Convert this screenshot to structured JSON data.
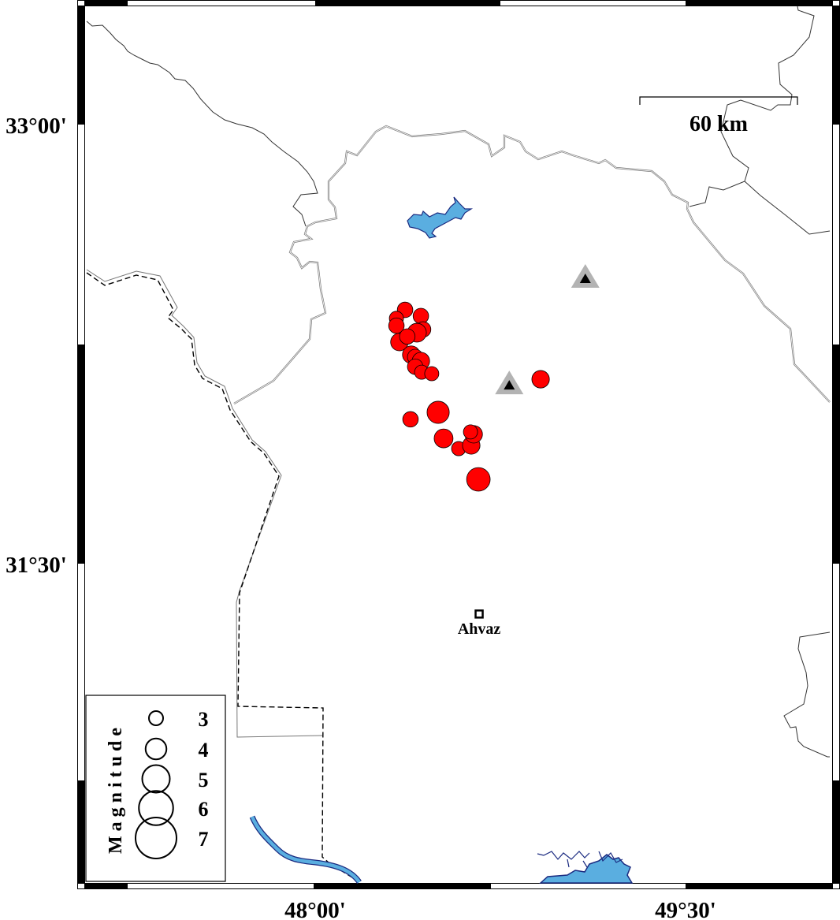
{
  "map": {
    "region": {
      "lon_min": 47.0,
      "lon_max": 50.0,
      "lat_min": 30.0,
      "lat_max": 33.4
    },
    "lon_ticks": [
      {
        "value": 48.0,
        "label": "48°00'"
      },
      {
        "value": 49.5,
        "label": "49°30'"
      }
    ],
    "lat_ticks": [
      {
        "value": 33.0,
        "label": "33°00'"
      },
      {
        "value": 31.5,
        "label": "31°30'"
      }
    ],
    "colors": {
      "event_fill": "#ff0000",
      "station_outer": "#b3b3b3",
      "station_inner": "#000000",
      "water_fill": "#5aaee0",
      "water_outline": "#1a2a80",
      "border": "#333333"
    },
    "scale_bar": {
      "label": "60 km"
    },
    "city": {
      "name": "Ahvaz",
      "lon": 48.664,
      "lat": 31.328,
      "icon": "square-marker-icon"
    },
    "stations": [
      {
        "lon": 49.094,
        "lat": 32.483,
        "icon": "triangle-station-icon"
      },
      {
        "lon": 48.786,
        "lat": 32.119,
        "icon": "triangle-station-icon"
      }
    ],
    "events": [
      {
        "lon": 48.364,
        "lat": 32.367,
        "mag": 3.2
      },
      {
        "lon": 48.329,
        "lat": 32.338,
        "mag": 3.0
      },
      {
        "lon": 48.329,
        "lat": 32.313,
        "mag": 3.2
      },
      {
        "lon": 48.428,
        "lat": 32.346,
        "mag": 3.2
      },
      {
        "lon": 48.437,
        "lat": 32.3,
        "mag": 3.2
      },
      {
        "lon": 48.412,
        "lat": 32.289,
        "mag": 3.7
      },
      {
        "lon": 48.341,
        "lat": 32.257,
        "mag": 3.5
      },
      {
        "lon": 48.373,
        "lat": 32.276,
        "mag": 3.2
      },
      {
        "lon": 48.389,
        "lat": 32.214,
        "mag": 3.5
      },
      {
        "lon": 48.405,
        "lat": 32.206,
        "mag": 3.2
      },
      {
        "lon": 48.428,
        "lat": 32.192,
        "mag": 3.5
      },
      {
        "lon": 48.405,
        "lat": 32.173,
        "mag": 3.2
      },
      {
        "lon": 48.431,
        "lat": 32.154,
        "mag": 3.0
      },
      {
        "lon": 48.472,
        "lat": 32.149,
        "mag": 3.0
      },
      {
        "lon": 48.913,
        "lat": 32.13,
        "mag": 3.5
      },
      {
        "lon": 48.386,
        "lat": 31.993,
        "mag": 3.2
      },
      {
        "lon": 48.498,
        "lat": 32.017,
        "mag": 4.2
      },
      {
        "lon": 48.52,
        "lat": 31.928,
        "mag": 3.7
      },
      {
        "lon": 48.581,
        "lat": 31.893,
        "mag": 3.0
      },
      {
        "lon": 48.632,
        "lat": 31.904,
        "mag": 3.5
      },
      {
        "lon": 48.642,
        "lat": 31.942,
        "mag": 3.5
      },
      {
        "lon": 48.629,
        "lat": 31.95,
        "mag": 3.0
      },
      {
        "lon": 48.661,
        "lat": 31.788,
        "mag": 4.4
      }
    ]
  },
  "legend": {
    "title": "Magnitude",
    "items": [
      {
        "mag": 3,
        "label": "3"
      },
      {
        "mag": 4,
        "label": "4"
      },
      {
        "mag": 5,
        "label": "5"
      },
      {
        "mag": 6,
        "label": "6"
      },
      {
        "mag": 7,
        "label": "7"
      }
    ]
  }
}
